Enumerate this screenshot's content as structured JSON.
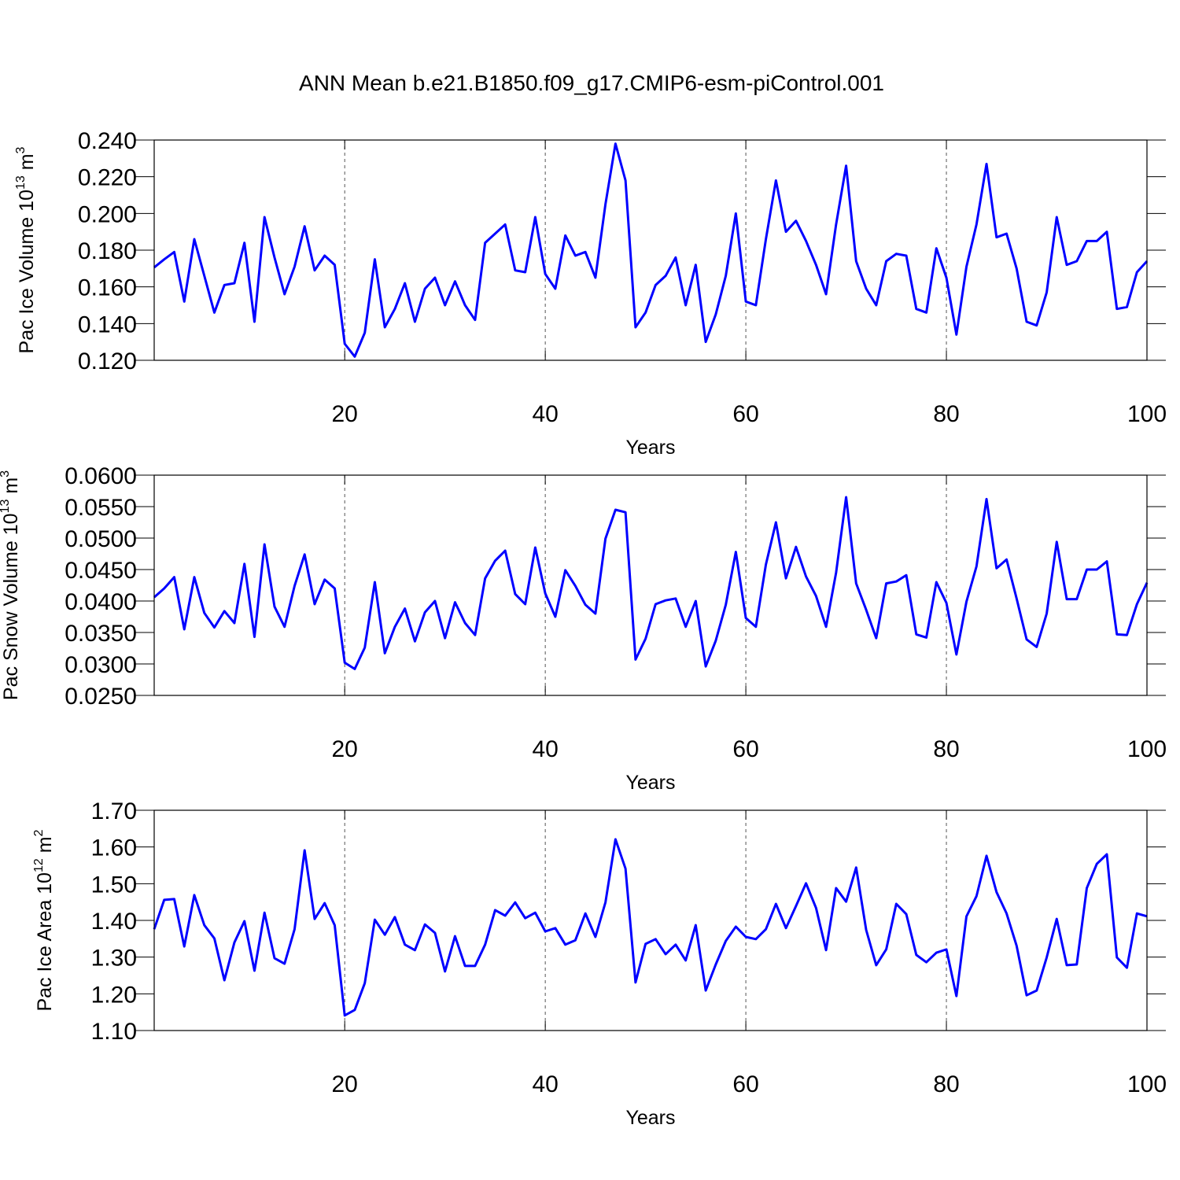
{
  "title": "ANN Mean b.e21.B1850.f09_g17.CMIP6-esm-piControl.001",
  "chart_data": [
    {
      "type": "line",
      "ylabel": [
        "Pac Ice Volume 10",
        "13",
        " m",
        "3"
      ],
      "xlabel": "Years",
      "xlim": [
        1,
        100
      ],
      "xticks": [
        20,
        40,
        60,
        80,
        100
      ],
      "grid": true,
      "ylim": [
        0.12,
        0.24
      ],
      "yticks": [
        {
          "value": 0.12,
          "label": "0.120"
        },
        {
          "value": 0.14,
          "label": "0.140"
        },
        {
          "value": 0.16,
          "label": "0.160"
        },
        {
          "value": 0.18,
          "label": "0.180"
        },
        {
          "value": 0.2,
          "label": "0.200"
        },
        {
          "value": 0.22,
          "label": "0.220"
        },
        {
          "value": 0.24,
          "label": "0.240"
        }
      ],
      "x": [
        1,
        2,
        3,
        4,
        5,
        6,
        7,
        8,
        9,
        10,
        11,
        12,
        13,
        14,
        15,
        16,
        17,
        18,
        19,
        20,
        21,
        22,
        23,
        24,
        25,
        26,
        27,
        28,
        29,
        30,
        31,
        32,
        33,
        34,
        35,
        36,
        37,
        38,
        39,
        40,
        41,
        42,
        43,
        44,
        45,
        46,
        47,
        48,
        49,
        50,
        51,
        52,
        53,
        54,
        55,
        56,
        57,
        58,
        59,
        60,
        61,
        62,
        63,
        64,
        65,
        66,
        67,
        68,
        69,
        70,
        71,
        72,
        73,
        74,
        75,
        76,
        77,
        78,
        79,
        80,
        81,
        82,
        83,
        84,
        85,
        86,
        87,
        88,
        89,
        90,
        91,
        92,
        93,
        94,
        95,
        96,
        97,
        98,
        99,
        100
      ],
      "series": [
        {
          "color": "#0000ff",
          "values": [
            0.1706,
            0.175,
            0.179,
            0.152,
            0.186,
            0.166,
            0.146,
            0.161,
            0.162,
            0.184,
            0.141,
            0.198,
            0.176,
            0.156,
            0.171,
            0.193,
            0.169,
            0.177,
            0.172,
            0.129,
            0.122,
            0.135,
            0.175,
            0.138,
            0.148,
            0.162,
            0.141,
            0.159,
            0.165,
            0.15,
            0.163,
            0.15,
            0.142,
            0.184,
            0.189,
            0.194,
            0.169,
            0.168,
            0.198,
            0.167,
            0.159,
            0.188,
            0.177,
            0.179,
            0.165,
            0.205,
            0.238,
            0.218,
            0.138,
            0.146,
            0.161,
            0.166,
            0.176,
            0.15,
            0.172,
            0.13,
            0.145,
            0.166,
            0.2,
            0.152,
            0.15,
            0.186,
            0.218,
            0.19,
            0.196,
            0.185,
            0.172,
            0.156,
            0.194,
            0.226,
            0.174,
            0.159,
            0.15,
            0.174,
            0.178,
            0.177,
            0.148,
            0.146,
            0.181,
            0.165,
            0.134,
            0.171,
            0.194,
            0.227,
            0.187,
            0.189,
            0.17,
            0.141,
            0.139,
            0.157,
            0.198,
            0.172,
            0.174,
            0.185,
            0.185,
            0.19,
            0.148,
            0.149,
            0.168,
            0.174
          ]
        }
      ]
    },
    {
      "type": "line",
      "ylabel": [
        "Pac Snow Volume 10",
        "13",
        " m",
        "3"
      ],
      "xlabel": "Years",
      "xlim": [
        1,
        100
      ],
      "xticks": [
        20,
        40,
        60,
        80,
        100
      ],
      "grid": true,
      "ylim": [
        0.025,
        0.06
      ],
      "yticks": [
        {
          "value": 0.025,
          "label": "0.0250"
        },
        {
          "value": 0.03,
          "label": "0.0300"
        },
        {
          "value": 0.035,
          "label": "0.0350"
        },
        {
          "value": 0.04,
          "label": "0.0400"
        },
        {
          "value": 0.045,
          "label": "0.0450"
        },
        {
          "value": 0.05,
          "label": "0.0500"
        },
        {
          "value": 0.055,
          "label": "0.0550"
        },
        {
          "value": 0.06,
          "label": "0.0600"
        }
      ],
      "x": [
        1,
        2,
        3,
        4,
        5,
        6,
        7,
        8,
        9,
        10,
        11,
        12,
        13,
        14,
        15,
        16,
        17,
        18,
        19,
        20,
        21,
        22,
        23,
        24,
        25,
        26,
        27,
        28,
        29,
        30,
        31,
        32,
        33,
        34,
        35,
        36,
        37,
        38,
        39,
        40,
        41,
        42,
        43,
        44,
        45,
        46,
        47,
        48,
        49,
        50,
        51,
        52,
        53,
        54,
        55,
        56,
        57,
        58,
        59,
        60,
        61,
        62,
        63,
        64,
        65,
        66,
        67,
        68,
        69,
        70,
        71,
        72,
        73,
        74,
        75,
        76,
        77,
        78,
        79,
        80,
        81,
        82,
        83,
        84,
        85,
        86,
        87,
        88,
        89,
        90,
        91,
        92,
        93,
        94,
        95,
        96,
        97,
        98,
        99,
        100
      ],
      "series": [
        {
          "color": "#0000ff",
          "values": [
            0.0406,
            0.042,
            0.0438,
            0.0355,
            0.0438,
            0.0381,
            0.0358,
            0.0384,
            0.0365,
            0.0459,
            0.0343,
            0.049,
            0.0391,
            0.0359,
            0.0424,
            0.0474,
            0.0395,
            0.0434,
            0.042,
            0.0302,
            0.0292,
            0.0326,
            0.043,
            0.0317,
            0.0359,
            0.0388,
            0.0336,
            0.0382,
            0.04,
            0.0341,
            0.0398,
            0.0365,
            0.0346,
            0.0436,
            0.0464,
            0.048,
            0.0411,
            0.0395,
            0.0485,
            0.0412,
            0.0375,
            0.0449,
            0.0424,
            0.0394,
            0.038,
            0.0499,
            0.0545,
            0.0541,
            0.0307,
            0.034,
            0.0395,
            0.0401,
            0.0404,
            0.0359,
            0.04,
            0.0296,
            0.0337,
            0.0394,
            0.0478,
            0.0373,
            0.0359,
            0.0458,
            0.0525,
            0.0436,
            0.0486,
            0.0439,
            0.0408,
            0.0359,
            0.0445,
            0.0565,
            0.0428,
            0.0386,
            0.0341,
            0.0428,
            0.0431,
            0.0441,
            0.0347,
            0.0342,
            0.043,
            0.0397,
            0.0315,
            0.0399,
            0.0455,
            0.0562,
            0.0452,
            0.0466,
            0.0404,
            0.0339,
            0.0327,
            0.038,
            0.0494,
            0.0403,
            0.0403,
            0.045,
            0.045,
            0.0463,
            0.0347,
            0.0346,
            0.0395,
            0.0429
          ]
        }
      ]
    },
    {
      "type": "line",
      "ylabel": [
        "Pac Ice Area 10",
        "12",
        " m",
        "2"
      ],
      "xlabel": "Years",
      "xlim": [
        1,
        100
      ],
      "xticks": [
        20,
        40,
        60,
        80,
        100
      ],
      "grid": true,
      "ylim": [
        1.1,
        1.7
      ],
      "yticks": [
        {
          "value": 1.1,
          "label": "1.10"
        },
        {
          "value": 1.2,
          "label": "1.20"
        },
        {
          "value": 1.3,
          "label": "1.30"
        },
        {
          "value": 1.4,
          "label": "1.40"
        },
        {
          "value": 1.5,
          "label": "1.50"
        },
        {
          "value": 1.6,
          "label": "1.60"
        },
        {
          "value": 1.7,
          "label": "1.70"
        }
      ],
      "x": [
        1,
        2,
        3,
        4,
        5,
        6,
        7,
        8,
        9,
        10,
        11,
        12,
        13,
        14,
        15,
        16,
        17,
        18,
        19,
        20,
        21,
        22,
        23,
        24,
        25,
        26,
        27,
        28,
        29,
        30,
        31,
        32,
        33,
        34,
        35,
        36,
        37,
        38,
        39,
        40,
        41,
        42,
        43,
        44,
        45,
        46,
        47,
        48,
        49,
        50,
        51,
        52,
        53,
        54,
        55,
        56,
        57,
        58,
        59,
        60,
        61,
        62,
        63,
        64,
        65,
        66,
        67,
        68,
        69,
        70,
        71,
        72,
        73,
        74,
        75,
        76,
        77,
        78,
        79,
        80,
        81,
        82,
        83,
        84,
        85,
        86,
        87,
        88,
        89,
        90,
        91,
        92,
        93,
        94,
        95,
        96,
        97,
        98,
        99,
        100
      ],
      "series": [
        {
          "color": "#0000ff",
          "values": [
            1.376,
            1.456,
            1.458,
            1.329,
            1.469,
            1.387,
            1.351,
            1.237,
            1.34,
            1.398,
            1.263,
            1.421,
            1.297,
            1.282,
            1.376,
            1.591,
            1.404,
            1.447,
            1.387,
            1.141,
            1.156,
            1.229,
            1.402,
            1.361,
            1.409,
            1.334,
            1.319,
            1.389,
            1.366,
            1.261,
            1.357,
            1.276,
            1.276,
            1.334,
            1.428,
            1.413,
            1.449,
            1.406,
            1.421,
            1.37,
            1.379,
            1.334,
            1.346,
            1.419,
            1.355,
            1.449,
            1.621,
            1.541,
            1.231,
            1.336,
            1.349,
            1.308,
            1.334,
            1.291,
            1.387,
            1.209,
            1.28,
            1.344,
            1.383,
            1.355,
            1.349,
            1.376,
            1.445,
            1.379,
            1.439,
            1.501,
            1.434,
            1.319,
            1.488,
            1.451,
            1.544,
            1.374,
            1.278,
            1.321,
            1.445,
            1.417,
            1.306,
            1.286,
            1.312,
            1.321,
            1.194,
            1.411,
            1.466,
            1.576,
            1.477,
            1.419,
            1.331,
            1.196,
            1.209,
            1.299,
            1.404,
            1.278,
            1.28,
            1.488,
            1.554,
            1.58,
            1.299,
            1.271,
            1.419,
            1.411
          ]
        }
      ]
    }
  ]
}
